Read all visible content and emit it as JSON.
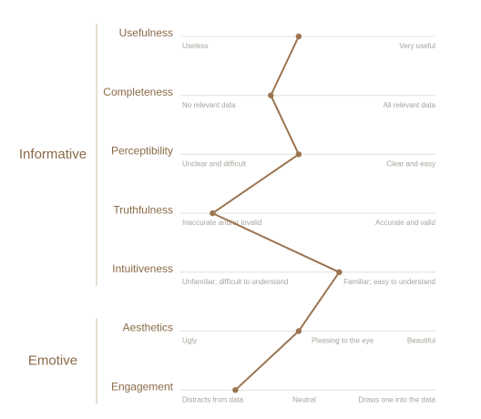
{
  "chart_data": {
    "type": "line",
    "color": "#9b7450",
    "xlim": [
      0,
      100
    ],
    "groups": [
      {
        "label": "Informative",
        "items": [
          {
            "name": "Usefulness",
            "anchors": [
              "Useless",
              "Very useful"
            ],
            "value": 46
          },
          {
            "name": "Completeness",
            "anchors": [
              "No relevant data",
              "All relevant data"
            ],
            "value": 35
          },
          {
            "name": "Perceptibility",
            "anchors": [
              "Unclear and difficult",
              "Clear and easy"
            ],
            "value": 46
          },
          {
            "name": "Truthfulness",
            "anchors": [
              "Inaccurate and/or invalid",
              "Accurate and valid"
            ],
            "value": 12
          },
          {
            "name": "Intuitiveness",
            "anchors": [
              "Unfamiliar; difficult to understand",
              "Familiar; easy to understand"
            ],
            "value": 62
          }
        ]
      },
      {
        "label": "Emotive",
        "items": [
          {
            "name": "Aesthetics",
            "anchors": [
              "Ugly",
              "Pleasing to the eye",
              "Beautiful"
            ],
            "value": 46
          },
          {
            "name": "Engagement",
            "anchors": [
              "Distracts from data",
              "Neutral",
              "Draws one into the data"
            ],
            "value": 21
          }
        ]
      }
    ]
  }
}
